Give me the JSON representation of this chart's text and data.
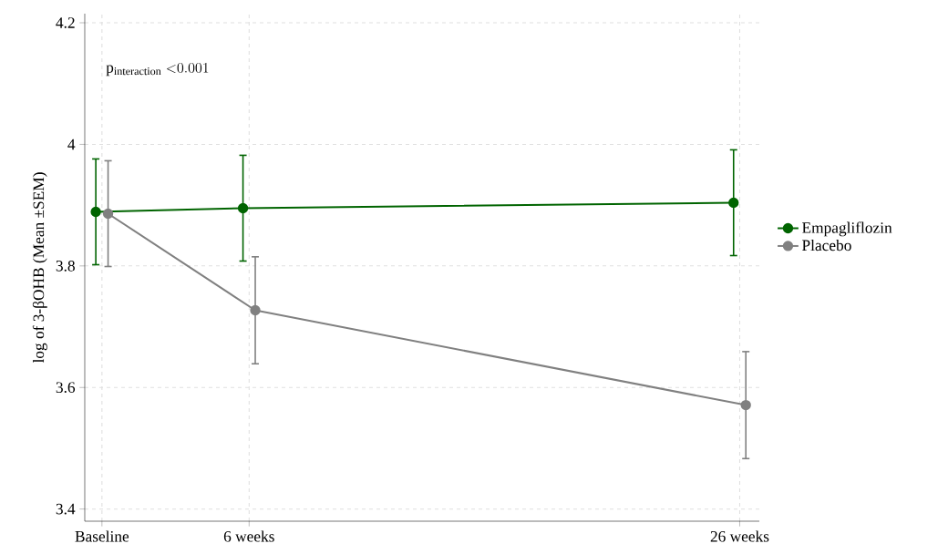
{
  "chart_data": {
    "type": "line",
    "ylabel": "log of 3-βOHB (Mean ±SEM)",
    "annotations": [
      "\\mathrm{p}_{\\mathrm{interaction}}\\ \\mathrm{<}0.001"
    ],
    "xlim": [
      -0.7,
      26.8
    ],
    "xticks": [
      {
        "value": 0,
        "label": "Baseline"
      },
      {
        "value": 6,
        "label": "6 weeks"
      },
      {
        "value": 26,
        "label": "26 weeks"
      }
    ],
    "ylim": [
      3.38,
      4.215
    ],
    "yticks": [
      3.4,
      3.6,
      3.8,
      4,
      4.2
    ],
    "grid": true,
    "legend": "right",
    "marker": "circle",
    "line_style": "solid",
    "series": [
      {
        "name": "Empagliflozin",
        "color": "#006400",
        "x": [
          -0.25,
          5.75,
          25.75
        ],
        "values": [
          3.889,
          3.895,
          3.904
        ],
        "errors": [
          0.087,
          0.087,
          0.087
        ]
      },
      {
        "name": "Placebo",
        "color": "#808080",
        "x": [
          0.25,
          6.25,
          26.25
        ],
        "values": [
          3.886,
          3.727,
          3.571
        ],
        "errors": [
          0.087,
          0.088,
          0.088
        ]
      }
    ]
  }
}
